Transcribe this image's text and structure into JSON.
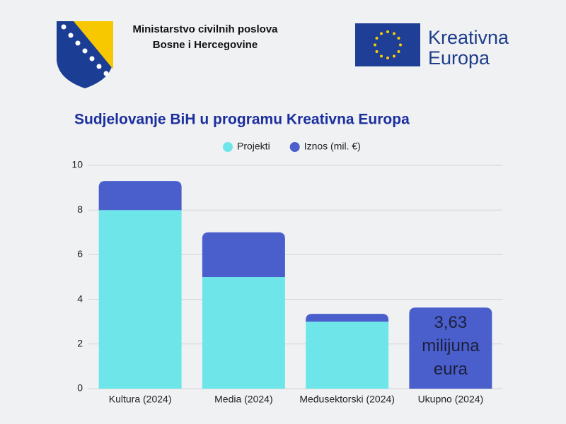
{
  "header": {
    "ministry": [
      "Ministarstvo civilnih poslova",
      "Bosne i Hercegovine"
    ],
    "programme": [
      "Kreativna",
      "Europa"
    ]
  },
  "chart_data": {
    "type": "bar",
    "stacked": true,
    "title": "Sudjelovanje BiH u programu Kreativna Europa",
    "categories": [
      "Kultura (2024)",
      "Media (2024)",
      "Međusektorski (2024)",
      "Ukupno (2024)"
    ],
    "series": [
      {
        "name": "Projekti",
        "color": "#6ee6e9",
        "values": [
          8,
          5,
          3,
          null
        ]
      },
      {
        "name": "Iznos (mil. €)",
        "color": "#4a5fcc",
        "values": [
          1.3,
          2.0,
          0.35,
          3.63
        ],
        "value_labels": [
          null,
          null,
          null,
          "3,63 milijuna eura"
        ]
      }
    ],
    "ylim": [
      0,
      10
    ],
    "yticks": [
      0,
      2,
      4,
      6,
      8,
      10
    ],
    "grid": true,
    "legend": "top"
  }
}
